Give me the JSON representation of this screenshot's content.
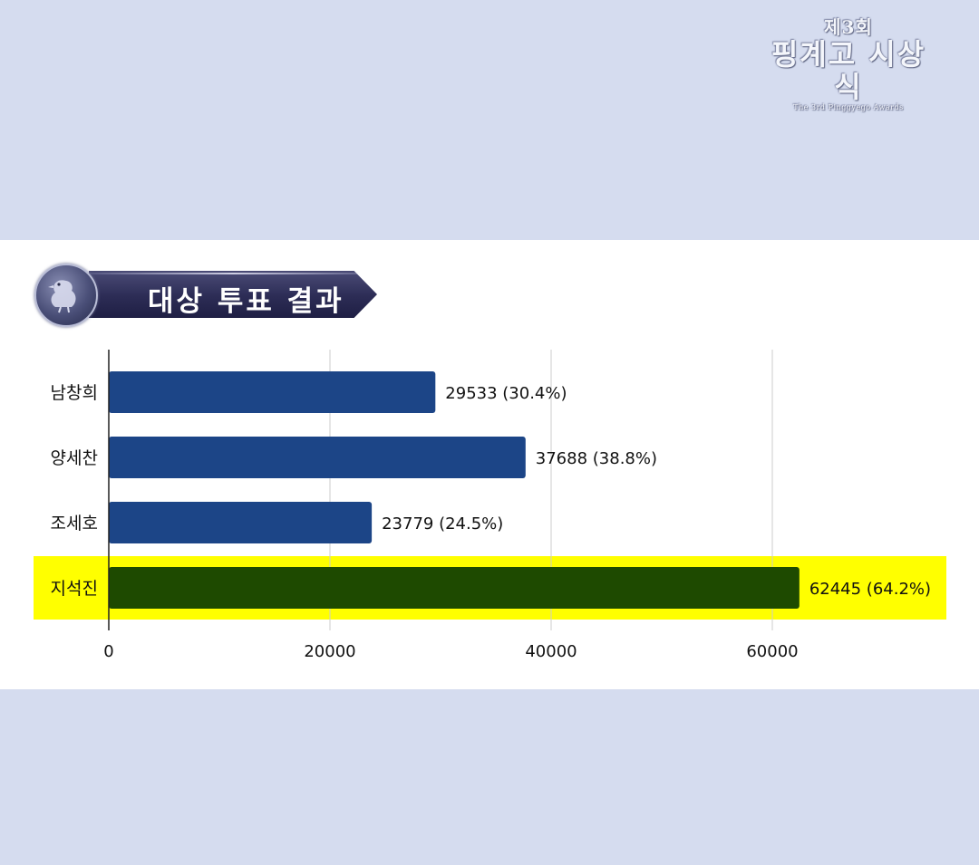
{
  "logo": {
    "line1": "제3회",
    "line2": "핑계고 시상식",
    "line3": "The 3rd Pinggyego Awards"
  },
  "title": "대상 투표 결과",
  "colors": {
    "background": "#d5dcef",
    "panel": "#ffffff",
    "bar": "#1c4587",
    "winner_bar": "#1e4a00",
    "highlight": "#ffff00"
  },
  "chart_data": {
    "type": "bar",
    "orientation": "horizontal",
    "categories": [
      "남창희",
      "양세찬",
      "조세호",
      "지석진"
    ],
    "values": [
      29533,
      37688,
      23779,
      62445
    ],
    "value_labels": [
      "29533 (30.4%)",
      "37688 (38.8%)",
      "23779 (24.5%)",
      "62445 (64.2%)"
    ],
    "highlighted_category": "지석진",
    "xlim": [
      0,
      70000
    ],
    "xticks": [
      0,
      20000,
      40000,
      60000
    ],
    "xtick_labels": [
      "0",
      "20000",
      "40000",
      "60000"
    ],
    "grid": "vertical",
    "xlabel": "",
    "ylabel": ""
  }
}
